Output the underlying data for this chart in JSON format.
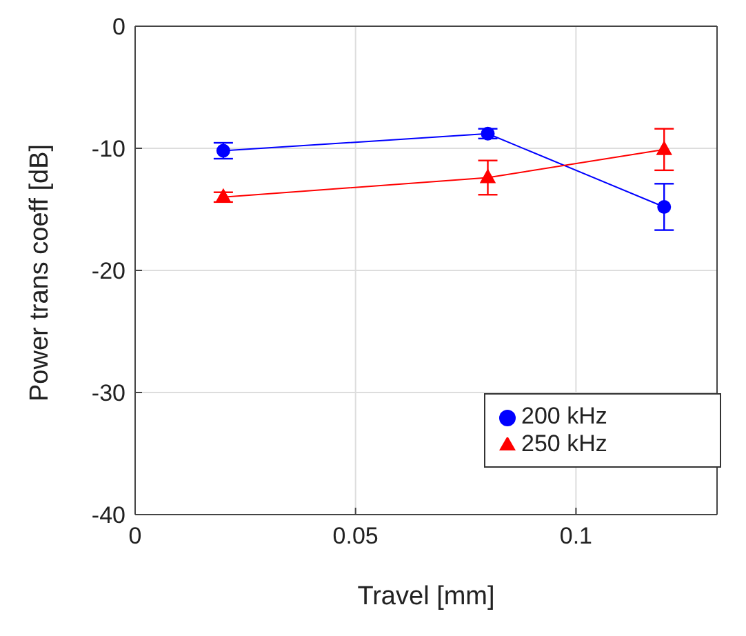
{
  "chart_data": {
    "type": "line",
    "xlabel": "Travel [mm]",
    "ylabel": "Power trans coeff [dB]",
    "x": [
      0.02,
      0.08,
      0.12
    ],
    "series": [
      {
        "name": "200 kHz",
        "color": "#0000ff",
        "marker": "circle",
        "values": [
          -10.2,
          -8.8,
          -14.8
        ],
        "errors": [
          0.65,
          0.4,
          1.9
        ]
      },
      {
        "name": "250 kHz",
        "color": "#ff0000",
        "marker": "triangle",
        "values": [
          -14.0,
          -12.4,
          -10.1
        ],
        "errors": [
          0.4,
          1.4,
          1.7
        ]
      }
    ],
    "xlim": [
      0,
      0.132
    ],
    "xticks": [
      0,
      0.05,
      0.1
    ],
    "ylim": [
      -40,
      0
    ],
    "yticks": [
      -40,
      -30,
      -20,
      -10,
      0
    ],
    "grid": true,
    "legend": "bottom right"
  }
}
